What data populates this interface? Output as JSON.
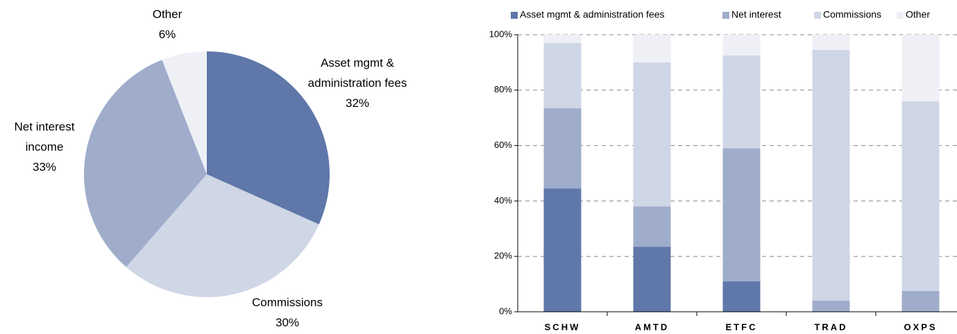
{
  "chart_data": [
    {
      "type": "pie",
      "labels": [
        "Asset mgmt & administration fees",
        "Commissions",
        "Net interest income",
        "Other"
      ],
      "values": [
        32,
        30,
        33,
        6
      ],
      "value_labels": [
        "32%",
        "30%",
        "33%",
        "6%"
      ],
      "colors": [
        "#5f77a9",
        "#cfd6e6",
        "#9fadcb",
        "#eef0f6"
      ]
    },
    {
      "type": "bar",
      "stacked": true,
      "categories": [
        "SCHW",
        "AMTD",
        "ETFC",
        "TRAD",
        "OXPS"
      ],
      "series": [
        {
          "name": "Asset mgmt & administration fees",
          "color": "#5f77a9",
          "values": [
            44.5,
            23.5,
            11,
            0,
            0
          ]
        },
        {
          "name": "Net interest",
          "color": "#9fadcb",
          "values": [
            29,
            14.5,
            48,
            4,
            7.5
          ]
        },
        {
          "name": "Commissions",
          "color": "#cfd6e6",
          "values": [
            23.5,
            52,
            33.5,
            90.5,
            68.5
          ]
        },
        {
          "name": "Other",
          "color": "#eef0f6",
          "values": [
            3,
            10,
            7.5,
            5.5,
            24
          ]
        }
      ],
      "ylim": [
        0,
        100
      ],
      "yticks": [
        {
          "value": 0,
          "label": "0%"
        },
        {
          "value": 20,
          "label": "20%"
        },
        {
          "value": 40,
          "label": "40%"
        },
        {
          "value": 60,
          "label": "60%"
        },
        {
          "value": 80,
          "label": "80%"
        },
        {
          "value": 100,
          "label": "100%"
        }
      ],
      "grid": true,
      "legend": "top"
    }
  ]
}
